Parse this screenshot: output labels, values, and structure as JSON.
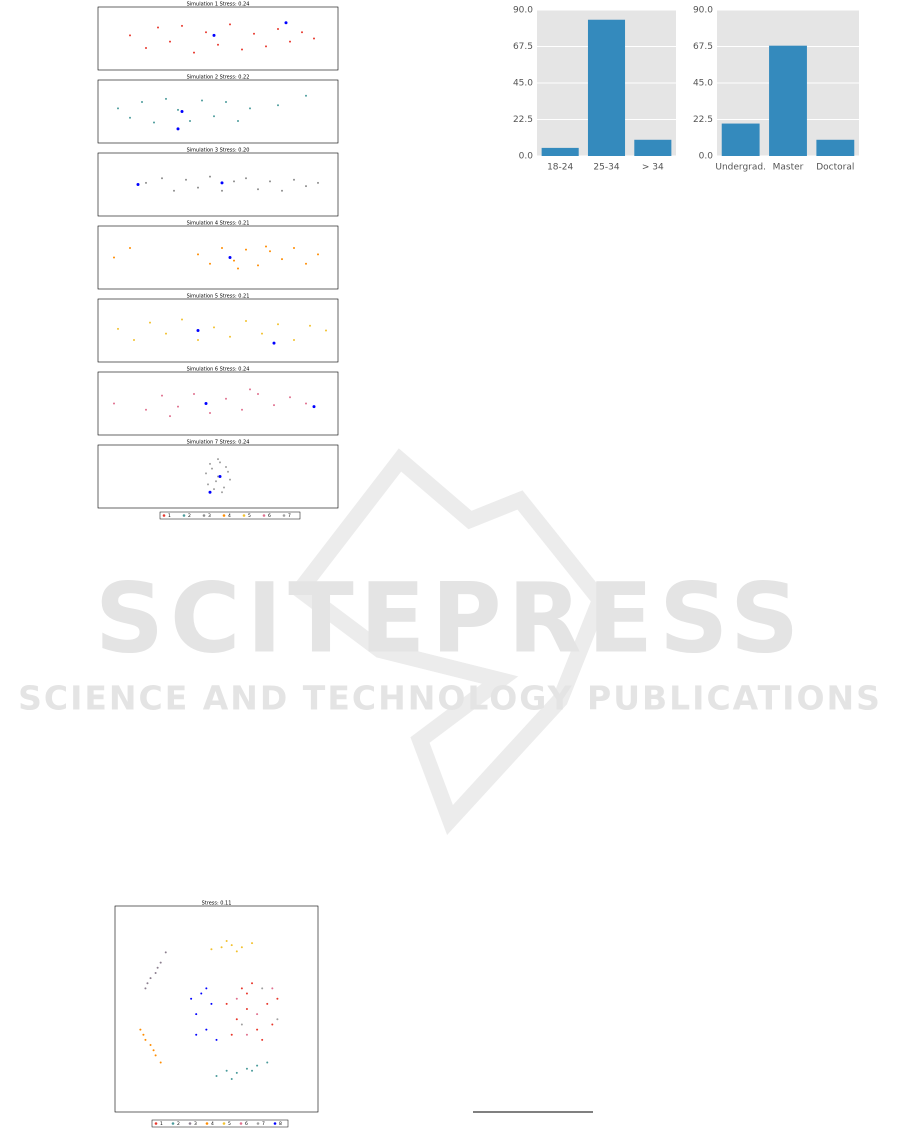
{
  "chart_data": [
    {
      "type": "bar",
      "categories": [
        "18-24",
        "25-34",
        "> 34"
      ],
      "values": [
        5,
        84,
        10
      ],
      "color": "#348abd",
      "ylim": [
        0,
        90
      ],
      "yticks": [
        {
          "value": 0,
          "label": "0.0"
        },
        22.5,
        {
          "value": 45,
          "label": "45.0"
        },
        67.5,
        {
          "value": 90,
          "label": "90.0"
        }
      ],
      "grid": true
    },
    {
      "type": "bar",
      "categories": [
        "Undergrad.",
        "Master",
        "Doctoral"
      ],
      "values": [
        20,
        68,
        10
      ],
      "color": "#348abd",
      "ylim": [
        0,
        90
      ],
      "yticks": [
        {
          "value": 0,
          "label": "0.0"
        },
        22.5,
        {
          "value": 45,
          "label": "45.0"
        },
        67.5,
        {
          "value": 90,
          "label": "90.0"
        }
      ],
      "grid": true
    },
    {
      "type": "scatter",
      "title": "Simulation 1 Stress: 0.24",
      "xlim": [
        -3,
        3
      ],
      "ylim": [
        -1,
        1
      ],
      "series": [
        {
          "name": "1",
          "color": "#e8372c",
          "x": [
            -2.2,
            -1.8,
            -1.5,
            -1.2,
            -0.9,
            -0.6,
            -0.3,
            0,
            0.3,
            0.6,
            0.9,
            1.2,
            1.5,
            1.8,
            2.1,
            2.4
          ],
          "y": [
            0.1,
            -0.3,
            0.35,
            -0.1,
            0.4,
            -0.45,
            0.2,
            -0.2,
            0.45,
            -0.35,
            0.15,
            -0.25,
            0.3,
            -0.1,
            0.2,
            0
          ]
        },
        {
          "color": "#0000ff",
          "x": [
            -0.1,
            1.7
          ],
          "y": [
            0.1,
            0.5
          ]
        }
      ]
    },
    {
      "type": "scatter",
      "title": "Simulation 2 Stress: 0.22",
      "xlim": [
        -3,
        3
      ],
      "ylim": [
        -1,
        1
      ],
      "series": [
        {
          "name": "2",
          "color": "#4a9b9b",
          "x": [
            -2.5,
            -2.2,
            -1.9,
            -1.6,
            -1.3,
            -1.0,
            -0.7,
            -0.4,
            -0.1,
            0.2,
            0.5,
            0.8,
            1.5,
            2.2
          ],
          "y": [
            0.1,
            -0.2,
            0.3,
            -0.35,
            0.4,
            0.05,
            -0.3,
            0.35,
            -0.15,
            0.3,
            -0.3,
            0.1,
            0.2,
            0.5
          ]
        },
        {
          "color": "#0000ff",
          "x": [
            -0.9,
            -1.0
          ],
          "y": [
            0.0,
            -0.55
          ]
        }
      ]
    },
    {
      "type": "scatter",
      "title": "Simulation 3 Stress: 0.20",
      "xlim": [
        -3,
        3
      ],
      "ylim": [
        -1,
        1
      ],
      "series": [
        {
          "name": "3",
          "color": "#8c8c8c",
          "x": [
            -1.8,
            -1.4,
            -1.1,
            -0.8,
            -0.5,
            -0.2,
            0.1,
            0.4,
            0.7,
            1.0,
            1.3,
            1.6,
            1.9,
            2.2,
            2.5
          ],
          "y": [
            0.05,
            0.2,
            -0.2,
            0.15,
            -0.1,
            0.25,
            -0.2,
            0.1,
            0.2,
            -0.15,
            0.1,
            -0.2,
            0.15,
            -0.05,
            0.05
          ]
        },
        {
          "color": "#0000ff",
          "x": [
            -2.0,
            0.1
          ],
          "y": [
            0,
            0.05
          ]
        }
      ]
    },
    {
      "type": "scatter",
      "title": "Simulation 4 Stress: 0.21",
      "xlim": [
        -3,
        3
      ],
      "ylim": [
        -1,
        1
      ],
      "series": [
        {
          "name": "4",
          "color": "#ff8c00",
          "x": [
            -2.6,
            -2.2,
            -0.5,
            -0.2,
            0.1,
            0.4,
            0.7,
            1.0,
            1.3,
            1.6,
            1.9,
            2.2,
            2.5,
            0.5,
            1.2
          ],
          "y": [
            0.0,
            0.3,
            0.1,
            -0.2,
            0.3,
            -0.1,
            0.25,
            -0.25,
            0.2,
            -0.05,
            0.3,
            -0.2,
            0.1,
            -0.35,
            0.35
          ]
        },
        {
          "color": "#0000ff",
          "x": [
            0.3
          ],
          "y": [
            0.0
          ]
        }
      ]
    },
    {
      "type": "scatter",
      "title": "Simulation 5 Stress: 0.21",
      "xlim": [
        -3,
        3
      ],
      "ylim": [
        -1,
        1
      ],
      "series": [
        {
          "name": "5",
          "color": "#f2c12e",
          "x": [
            -2.5,
            -2.1,
            -1.7,
            -1.3,
            -0.9,
            -0.5,
            -0.1,
            0.3,
            0.7,
            1.1,
            1.5,
            1.9,
            2.3,
            2.7
          ],
          "y": [
            0.05,
            -0.3,
            0.25,
            -0.1,
            0.35,
            -0.3,
            0.1,
            -0.2,
            0.3,
            -0.1,
            0.2,
            -0.3,
            0.15,
            0.0
          ]
        },
        {
          "color": "#0000ff",
          "x": [
            -0.5,
            1.4
          ],
          "y": [
            0.0,
            -0.4
          ]
        }
      ]
    },
    {
      "type": "scatter",
      "title": "Simulation 6 Stress: 0.24",
      "xlim": [
        -3,
        3
      ],
      "ylim": [
        -1,
        1
      ],
      "series": [
        {
          "name": "6",
          "color": "#e0708e",
          "x": [
            -2.6,
            -1.8,
            -1.4,
            -1.0,
            -0.6,
            -0.2,
            0.2,
            0.6,
            1.0,
            1.4,
            1.8,
            2.2,
            -1.2,
            0.8
          ],
          "y": [
            0.0,
            -0.2,
            0.25,
            -0.1,
            0.3,
            -0.3,
            0.15,
            -0.2,
            0.3,
            -0.05,
            0.2,
            0.0,
            -0.4,
            0.45
          ]
        },
        {
          "color": "#0000ff",
          "x": [
            -0.3,
            2.4
          ],
          "y": [
            0.0,
            -0.1
          ]
        }
      ]
    },
    {
      "type": "scatter",
      "title": "Simulation 7 Stress: 0.24",
      "xlim": [
        -3,
        3
      ],
      "ylim": [
        -1,
        1
      ],
      "series": [
        {
          "name": "7",
          "color": "#a0a0a0",
          "x": [
            -0.3,
            -0.2,
            -0.1,
            0,
            0.1,
            0.2,
            0.3,
            -0.25,
            0.25,
            0,
            -0.15,
            0.15,
            0.05,
            -0.05
          ],
          "y": [
            0.1,
            0.4,
            -0.4,
            0.55,
            -0.5,
            0.3,
            -0.1,
            -0.25,
            0.15,
            0.0,
            0.25,
            -0.35,
            0.45,
            -0.15
          ]
        },
        {
          "color": "#0000ff",
          "x": [
            0.05,
            -0.2
          ],
          "y": [
            0.0,
            -0.5
          ]
        }
      ]
    },
    {
      "type": "scatter",
      "title": "Stress: 0.11",
      "xlim": [
        -1,
        1
      ],
      "ylim": [
        -1,
        1
      ],
      "series": [
        {
          "name": "1",
          "color": "#e8372c",
          "x": [
            0.1,
            0.2,
            0.3,
            0.4,
            0.5,
            0.6,
            0.15,
            0.35,
            0.55,
            0.25,
            0.45,
            0.3
          ],
          "y": [
            0.05,
            -0.1,
            0.15,
            -0.2,
            0.05,
            0.1,
            -0.25,
            0.25,
            -0.15,
            0.2,
            -0.3,
            0.0
          ]
        },
        {
          "name": "2",
          "color": "#4a9b9b",
          "x": [
            0.0,
            0.1,
            0.2,
            0.3,
            0.4,
            0.5,
            0.15,
            0.35
          ],
          "y": [
            -0.65,
            -0.6,
            -0.62,
            -0.58,
            -0.55,
            -0.52,
            -0.68,
            -0.6
          ]
        },
        {
          "name": "3",
          "color": "#8c7f8f",
          "x": [
            -0.7,
            -0.65,
            -0.6,
            -0.55,
            -0.5,
            -0.68,
            -0.58
          ],
          "y": [
            0.2,
            0.3,
            0.35,
            0.45,
            0.55,
            0.25,
            0.4
          ]
        },
        {
          "name": "4",
          "color": "#ff8c00",
          "x": [
            -0.75,
            -0.7,
            -0.65,
            -0.6,
            -0.55,
            -0.72,
            -0.62
          ],
          "y": [
            -0.2,
            -0.3,
            -0.35,
            -0.45,
            -0.52,
            -0.25,
            -0.4
          ]
        },
        {
          "name": "5",
          "color": "#f2c12e",
          "x": [
            -0.05,
            0.05,
            0.15,
            0.25,
            0.35,
            0.1,
            0.2
          ],
          "y": [
            0.58,
            0.6,
            0.62,
            0.6,
            0.64,
            0.66,
            0.56
          ]
        },
        {
          "name": "6",
          "color": "#e0708e",
          "x": [
            0.2,
            0.4,
            0.55,
            0.3
          ],
          "y": [
            0.1,
            -0.05,
            0.2,
            -0.25
          ]
        },
        {
          "name": "7",
          "color": "#a0a0a0",
          "x": [
            0.45,
            0.6,
            0.25
          ],
          "y": [
            0.2,
            -0.1,
            -0.15
          ]
        },
        {
          "name": "8",
          "color": "#0000ff",
          "x": [
            -0.25,
            -0.2,
            -0.15,
            -0.1,
            -0.05,
            0.0,
            -0.2,
            -0.1
          ],
          "y": [
            0.1,
            -0.05,
            0.15,
            -0.2,
            0.05,
            -0.3,
            -0.25,
            0.2
          ]
        }
      ]
    }
  ],
  "watermark": {
    "title": "SCITEPRESS",
    "subtitle": "SCIENCE AND TECHNOLOGY PUBLICATIONS"
  }
}
